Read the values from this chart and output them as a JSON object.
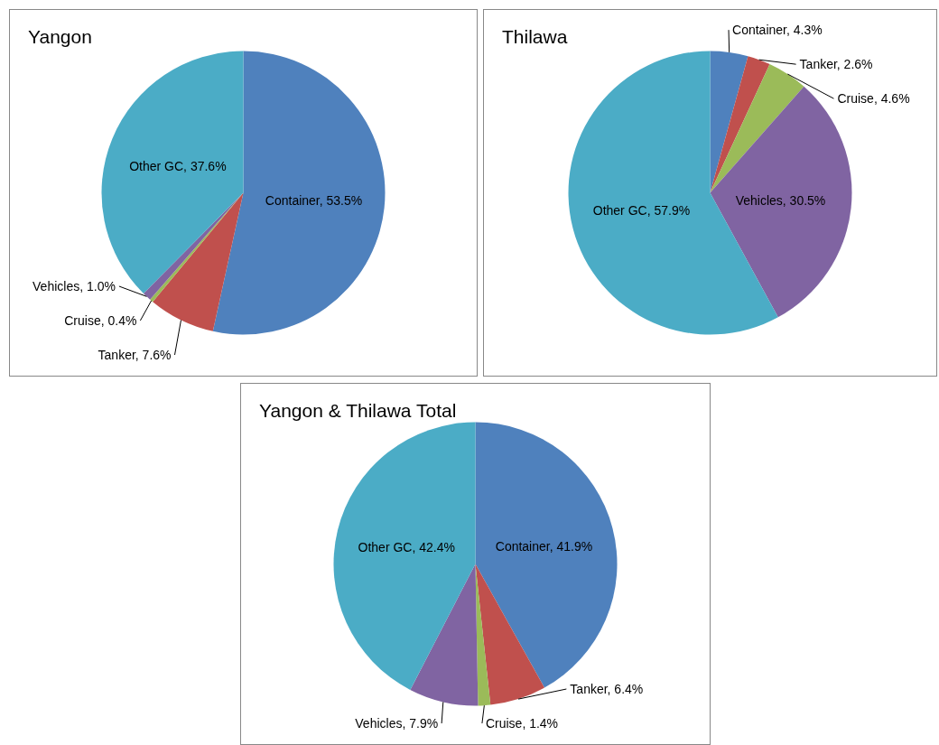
{
  "chart_data": [
    {
      "type": "pie",
      "title": "Yangon",
      "categories": [
        "Container",
        "Tanker",
        "Cruise",
        "Vehicles",
        "Other GC"
      ],
      "values": [
        53.5,
        7.6,
        0.4,
        1.0,
        37.6
      ],
      "colors": [
        "#4f81bd",
        "#c0504d",
        "#9bbb59",
        "#8064a2",
        "#4bacc6"
      ],
      "value_labels": [
        "53.5%",
        "7.6%",
        "0.4%",
        "1.0%",
        "37.6%"
      ]
    },
    {
      "type": "pie",
      "title": "Thilawa",
      "categories": [
        "Container",
        "Tanker",
        "Cruise",
        "Vehicles",
        "Other GC"
      ],
      "values": [
        4.3,
        2.6,
        4.6,
        30.5,
        57.9
      ],
      "colors": [
        "#4f81bd",
        "#c0504d",
        "#9bbb59",
        "#8064a2",
        "#4bacc6"
      ],
      "value_labels": [
        "4.3%",
        "2.6%",
        "4.6%",
        "30.5%",
        "57.9%"
      ]
    },
    {
      "type": "pie",
      "title": "Yangon & Thilawa Total",
      "categories": [
        "Container",
        "Tanker",
        "Cruise",
        "Vehicles",
        "Other GC"
      ],
      "values": [
        41.9,
        6.4,
        1.4,
        7.9,
        42.4
      ],
      "colors": [
        "#4f81bd",
        "#c0504d",
        "#9bbb59",
        "#8064a2",
        "#4bacc6"
      ],
      "value_labels": [
        "41.9%",
        "6.4%",
        "1.4%",
        "7.9%",
        "42.4%"
      ]
    }
  ]
}
